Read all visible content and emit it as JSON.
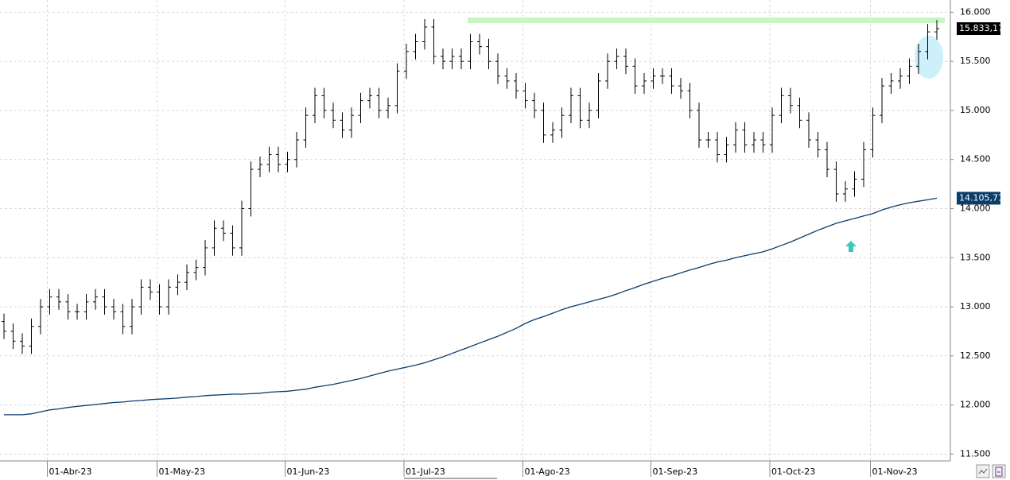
{
  "chart_data": {
    "type": "ohlc",
    "categories": [
      null,
      null,
      null,
      null,
      null,
      "01-Abr-23",
      null,
      null,
      null,
      null,
      null,
      null,
      null,
      null,
      null,
      null,
      null,
      "01-May-23",
      null,
      null,
      null,
      null,
      null,
      null,
      null,
      null,
      null,
      null,
      null,
      null,
      null,
      "01-Jun-23",
      null,
      null,
      null,
      null,
      null,
      null,
      null,
      null,
      null,
      null,
      null,
      null,
      "01-Jul-23",
      null,
      null,
      null,
      null,
      null,
      null,
      null,
      null,
      null,
      null,
      null,
      null,
      "01-Ago-23",
      null,
      null,
      null,
      null,
      null,
      null,
      null,
      null,
      null,
      null,
      null,
      null,
      null,
      "01-Sep-23",
      null,
      null,
      null,
      null,
      null,
      null,
      null,
      null,
      null,
      null,
      null,
      null,
      "01-Oct-23",
      null,
      null,
      null,
      null,
      null,
      null,
      null,
      null,
      null,
      null,
      "01-Nov-23",
      null,
      null,
      null,
      null,
      null,
      null,
      null
    ],
    "series": [
      {
        "type": "ohlc",
        "color": "#000000",
        "tag": "15.833,17",
        "open": [
          12850,
          12750,
          12650,
          12600,
          12800,
          13000,
          13100,
          13050,
          12950,
          12950,
          13050,
          13100,
          13000,
          12950,
          12800,
          13000,
          13200,
          13150,
          13000,
          13200,
          13250,
          13350,
          13400,
          13600,
          13800,
          13750,
          13600,
          14000,
          14400,
          14450,
          14550,
          14450,
          14500,
          14700,
          14950,
          15150,
          15000,
          14900,
          14800,
          14950,
          15100,
          15150,
          15000,
          15050,
          15400,
          15600,
          15700,
          15850,
          15550,
          15500,
          15550,
          15500,
          15700,
          15650,
          15500,
          15350,
          15300,
          15200,
          15100,
          15000,
          14750,
          14800,
          14950,
          15150,
          14900,
          15000,
          15300,
          15500,
          15550,
          15450,
          15250,
          15300,
          15350,
          15350,
          15250,
          15200,
          15000,
          14700,
          14700,
          14550,
          14650,
          14800,
          14650,
          14700,
          14650,
          14950,
          15150,
          15050,
          14900,
          14700,
          14600,
          14400,
          14150,
          14200,
          14300,
          14600,
          14950,
          15250,
          15300,
          15350,
          15450,
          15600,
          15800
        ],
        "high": [
          12930,
          12830,
          12730,
          12880,
          13080,
          13180,
          13180,
          13130,
          13030,
          13130,
          13180,
          13180,
          13080,
          13030,
          13080,
          13280,
          13280,
          13230,
          13280,
          13330,
          13430,
          13480,
          13680,
          13880,
          13880,
          13830,
          14080,
          14480,
          14530,
          14630,
          14630,
          14580,
          14780,
          15030,
          15230,
          15230,
          15080,
          14980,
          15030,
          15180,
          15230,
          15230,
          15130,
          15480,
          15680,
          15780,
          15930,
          15930,
          15630,
          15630,
          15630,
          15780,
          15780,
          15730,
          15580,
          15430,
          15380,
          15280,
          15180,
          15080,
          14880,
          15030,
          15230,
          15230,
          15080,
          15380,
          15580,
          15630,
          15630,
          15530,
          15380,
          15430,
          15430,
          15430,
          15330,
          15280,
          15080,
          14780,
          14780,
          14730,
          14880,
          14880,
          14780,
          14780,
          15030,
          15230,
          15230,
          15130,
          14980,
          14780,
          14680,
          14480,
          14280,
          14380,
          14680,
          15030,
          15330,
          15380,
          15430,
          15530,
          15680,
          15880,
          15920
        ],
        "low": [
          12670,
          12570,
          12520,
          12520,
          12720,
          12920,
          12970,
          12870,
          12870,
          12870,
          12970,
          12920,
          12870,
          12720,
          12720,
          12920,
          13070,
          12920,
          12920,
          13120,
          13170,
          13270,
          13320,
          13520,
          13670,
          13520,
          13520,
          13920,
          14320,
          14370,
          14370,
          14370,
          14420,
          14620,
          14870,
          14920,
          14820,
          14720,
          14720,
          14870,
          15020,
          14920,
          14920,
          14970,
          15320,
          15520,
          15620,
          15470,
          15420,
          15420,
          15420,
          15420,
          15570,
          15420,
          15270,
          15220,
          15120,
          15020,
          14920,
          14670,
          14670,
          14720,
          14870,
          14820,
          14820,
          14920,
          15220,
          15420,
          15370,
          15170,
          15170,
          15220,
          15270,
          15170,
          15120,
          14920,
          14620,
          14620,
          14470,
          14470,
          14570,
          14570,
          14570,
          14570,
          14570,
          14870,
          14970,
          14820,
          14620,
          14520,
          14320,
          14070,
          14070,
          14120,
          14220,
          14520,
          14870,
          15170,
          15220,
          15270,
          15370,
          15520,
          15720
        ],
        "close": [
          12750,
          12650,
          12600,
          12800,
          13000,
          13100,
          13050,
          12950,
          12950,
          13050,
          13100,
          13000,
          12950,
          12800,
          13000,
          13200,
          13150,
          13000,
          13200,
          13250,
          13350,
          13400,
          13600,
          13800,
          13750,
          13600,
          14000,
          14400,
          14450,
          14550,
          14450,
          14500,
          14700,
          14950,
          15150,
          15000,
          14900,
          14800,
          14950,
          15100,
          15150,
          15000,
          15050,
          15400,
          15600,
          15700,
          15850,
          15550,
          15500,
          15550,
          15500,
          15700,
          15650,
          15500,
          15350,
          15300,
          15200,
          15100,
          15000,
          14750,
          14800,
          14950,
          15150,
          14900,
          15000,
          15300,
          15500,
          15550,
          15450,
          15250,
          15300,
          15350,
          15350,
          15250,
          15200,
          15000,
          14700,
          14700,
          14550,
          14650,
          14800,
          14650,
          14700,
          14650,
          14950,
          15150,
          15050,
          14900,
          14700,
          14600,
          14400,
          14150,
          14200,
          14300,
          14600,
          14950,
          15250,
          15300,
          15350,
          15450,
          15600,
          15800,
          15833.17
        ]
      },
      {
        "type": "line",
        "color": "#0b3d6b",
        "tag": "14.105,71",
        "values": [
          11900,
          11900,
          11900,
          11910,
          11930,
          11950,
          11960,
          11975,
          11985,
          11995,
          12005,
          12015,
          12025,
          12030,
          12040,
          12045,
          12055,
          12060,
          12065,
          12070,
          12080,
          12085,
          12095,
          12100,
          12105,
          12110,
          12110,
          12115,
          12120,
          12130,
          12135,
          12140,
          12150,
          12160,
          12180,
          12195,
          12210,
          12230,
          12250,
          12270,
          12295,
          12320,
          12345,
          12365,
          12385,
          12405,
          12430,
          12460,
          12490,
          12525,
          12560,
          12595,
          12630,
          12665,
          12700,
          12740,
          12780,
          12830,
          12870,
          12900,
          12935,
          12970,
          13000,
          13025,
          13050,
          13075,
          13100,
          13130,
          13165,
          13195,
          13230,
          13260,
          13290,
          13315,
          13345,
          13375,
          13400,
          13430,
          13455,
          13475,
          13500,
          13520,
          13540,
          13560,
          13590,
          13625,
          13660,
          13700,
          13740,
          13780,
          13815,
          13850,
          13875,
          13900,
          13925,
          13950,
          13985,
          14015,
          14040,
          14060,
          14075,
          14090,
          14105.71
        ]
      }
    ],
    "ylim": [
      11430,
      16060
    ],
    "yticks": [
      {
        "value": 11500,
        "label": "11.500"
      },
      {
        "value": 12000,
        "label": "12.000"
      },
      {
        "value": 12500,
        "label": "12.500"
      },
      {
        "value": 13000,
        "label": "13.000"
      },
      {
        "value": 13500,
        "label": "13.500"
      },
      {
        "value": 14000,
        "label": "14.000"
      },
      {
        "value": 14500,
        "label": "14.500"
      },
      {
        "value": 15000,
        "label": "15.000"
      },
      {
        "value": 15500,
        "label": "15.500"
      },
      {
        "value": 16000,
        "label": "16.000"
      }
    ],
    "grid": true
  }
}
